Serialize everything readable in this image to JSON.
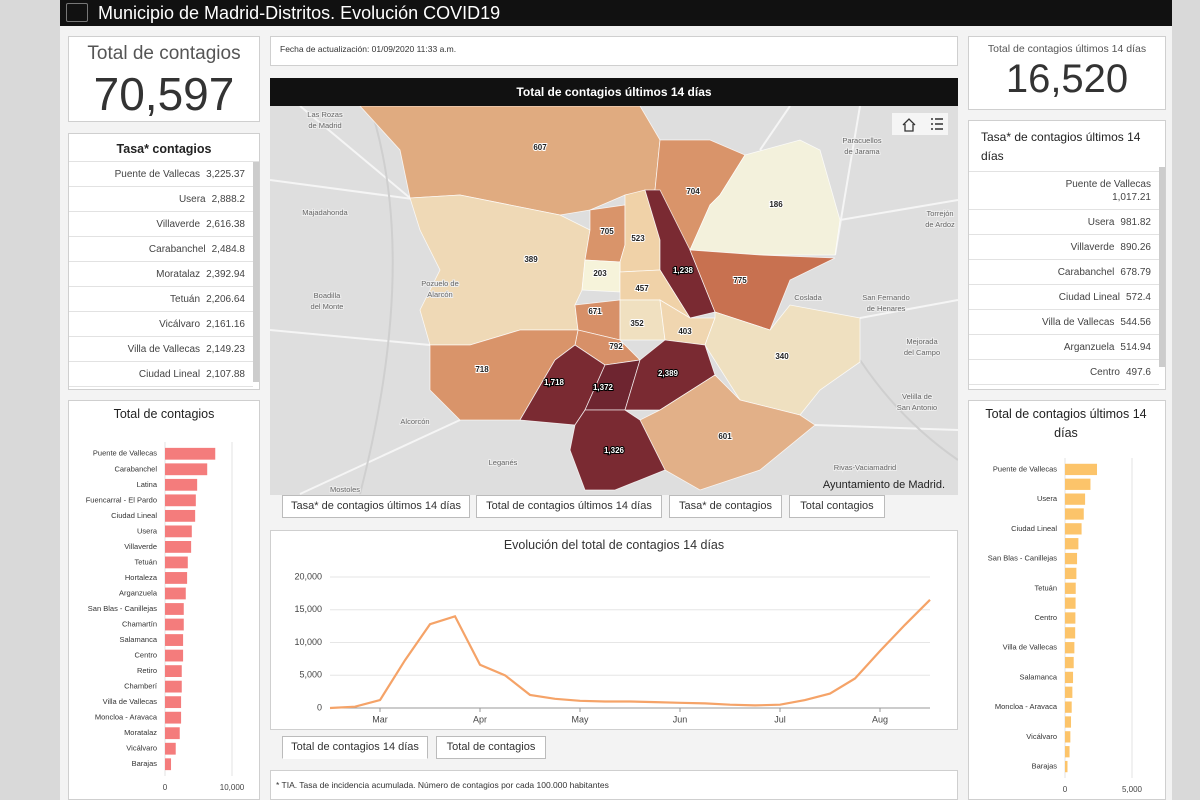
{
  "header": {
    "title": "Municipio de Madrid-Distritos. Evolución COVID19"
  },
  "total_card": {
    "label": "Total de contagios",
    "value": "70,597"
  },
  "update": "Fecha de actualización: 01/09/2020 11:33 a.m.",
  "total14_card": {
    "label": "Total de contagios últimos 14 días",
    "value": "16,520"
  },
  "rate_list": {
    "title": "Tasa* contagios",
    "rows": [
      [
        "Puente de Vallecas",
        "3,225.37"
      ],
      [
        "Usera",
        "2,888.2"
      ],
      [
        "Villaverde",
        "2,616.38"
      ],
      [
        "Carabanchel",
        "2,484.8"
      ],
      [
        "Moratalaz",
        "2,392.94"
      ],
      [
        "Tetuán",
        "2,206.64"
      ],
      [
        "Vicálvaro",
        "2,161.16"
      ],
      [
        "Villa de Vallecas",
        "2,149.23"
      ],
      [
        "Ciudad Lineal",
        "2,107.88"
      ]
    ]
  },
  "rate14_list": {
    "title": "Tasa* de contagios últimos 14 días",
    "rows": [
      [
        "Puente de Vallecas",
        "1,017.21"
      ],
      [
        "Usera",
        "981.82"
      ],
      [
        "Villaverde",
        "890.26"
      ],
      [
        "Carabanchel",
        "678.79"
      ],
      [
        "Ciudad Lineal",
        "572.4"
      ],
      [
        "Villa de Vallecas",
        "544.56"
      ],
      [
        "Arganzuela",
        "514.94"
      ],
      [
        "Centro",
        "497.6"
      ]
    ]
  },
  "map": {
    "title": "Total de contagios últimos 14 días",
    "district_labels": [
      "607",
      "704",
      "186",
      "705",
      "523",
      "389",
      "203",
      "1,238",
      "775",
      "457",
      "671",
      "352",
      "403",
      "340",
      "792",
      "718",
      "1,718",
      "1,372",
      "2,389",
      "601",
      "1,326"
    ],
    "place_labels": [
      "Las Rozas",
      "de Madrid",
      "Majadahonda",
      "Pozuelo de",
      "Alarcón",
      "Boadilla",
      "del Monte",
      "Alcorcón",
      "Leganés",
      "Mostoles",
      "Paracuellos",
      "de Jarama",
      "Torrejón",
      "de Ardoz",
      "Coslada",
      "San Fernando",
      "de Henares",
      "Mejorada",
      "del Campo",
      "Rivas-Vaciamadrid",
      "Velilla de",
      "San Antonio"
    ],
    "credit": "Ayuntamiento de Madrid."
  },
  "map_tabs": [
    "Tasa* de contagios últimos 14 días",
    "Total de contagios últimos 14 días",
    "Tasa* de contagios",
    "Total contagios"
  ],
  "line_tabs": [
    "Total de contagios 14 días",
    "Total de contagios"
  ],
  "footnote": "* TIA. Tasa de incidencia acumulada. Número de contagios por cada 100.000 habitantes",
  "chart_data": [
    {
      "type": "bar",
      "horizontal": true,
      "title": "Total de contagios",
      "categories": [
        "Puente de Vallecas",
        "Carabanchel",
        "Latina",
        "Fuencarral - El Pardo",
        "Ciudad Lineal",
        "Usera",
        "Villaverde",
        "Tetuán",
        "Hortaleza",
        "Arganzuela",
        "San Blas - Canillejas",
        "Chamartín",
        "Salamanca",
        "Centro",
        "Retiro",
        "Chamberí",
        "Villa de Vallecas",
        "Moncloa - Aravaca",
        "Moratalaz",
        "Vicálvaro",
        "Barajas"
      ],
      "values": [
        7500,
        6300,
        4800,
        4600,
        4500,
        4000,
        3900,
        3400,
        3300,
        3100,
        2800,
        2800,
        2700,
        2700,
        2500,
        2500,
        2400,
        2400,
        2200,
        1600,
        900
      ],
      "color": "#f47c7c",
      "xlim": [
        0,
        10000
      ],
      "xticks": [
        0,
        {
          "value": 10000,
          "label": "10,000"
        }
      ],
      "grid": true
    },
    {
      "type": "line",
      "title": "Evolución del total de contagios 14 días",
      "categories": [
        null,
        null,
        "Mar",
        null,
        null,
        null,
        "Apr",
        null,
        null,
        null,
        "May",
        null,
        null,
        null,
        "Jun",
        null,
        null,
        null,
        "Jul",
        null,
        null,
        null,
        "Aug",
        null,
        null
      ],
      "values": [
        0,
        200,
        1200,
        7300,
        12800,
        14000,
        6600,
        5000,
        2000,
        1400,
        1100,
        1000,
        1000,
        900,
        800,
        700,
        500,
        400,
        500,
        1200,
        2200,
        4500,
        8700,
        12700,
        16520
      ],
      "color": "#f5a368",
      "ylim": [
        0,
        20000
      ],
      "yticks": [
        0,
        {
          "value": 5000,
          "label": "5,000"
        },
        {
          "value": 10000,
          "label": "10,000"
        },
        {
          "value": 15000,
          "label": "15,000"
        },
        {
          "value": 20000,
          "label": "20,000"
        }
      ],
      "grid": true
    },
    {
      "type": "bar",
      "horizontal": true,
      "title": "Total de contagios últimos 14 días",
      "categories": [
        "Puente de Vallecas",
        null,
        "Usera",
        null,
        "Ciudad Lineal",
        null,
        "San Blas - Canillejas",
        null,
        "Tetuán",
        null,
        "Centro",
        null,
        "Villa de Vallecas",
        null,
        "Salamanca",
        null,
        "Moncloa - Aravaca",
        null,
        "Vicálvaro",
        null,
        "Barajas"
      ],
      "values": [
        2389,
        1900,
        1500,
        1400,
        1238,
        1000,
        900,
        850,
        800,
        790,
        775,
        760,
        700,
        650,
        600,
        550,
        500,
        450,
        400,
        340,
        186
      ],
      "color": "#fcc46a",
      "xlim": [
        0,
        5000
      ],
      "xticks": [
        0,
        {
          "value": 5000,
          "label": "5,000"
        }
      ],
      "grid": true
    }
  ]
}
